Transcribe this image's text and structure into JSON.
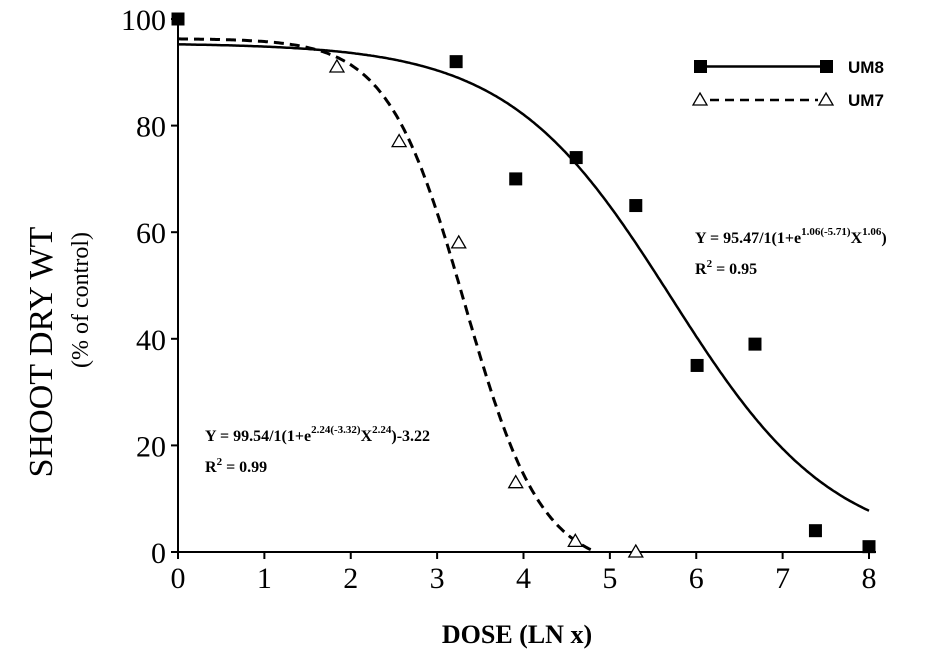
{
  "chart_data": {
    "type": "scatter",
    "xlabel": "DOSE (LN x)",
    "ylabel": "SHOOT DRY WT",
    "ylabel_sub": "(% of control)",
    "xlim": [
      0,
      8
    ],
    "ylim": [
      0,
      100
    ],
    "xticks": [
      "0",
      "1",
      "2",
      "3",
      "4",
      "5",
      "6",
      "7",
      "8"
    ],
    "yticks": [
      "0",
      "20",
      "40",
      "60",
      "80",
      "100"
    ],
    "grid": false,
    "legend_position": "top-right",
    "series": [
      {
        "name": "UM8",
        "marker": "filled-square",
        "line_style": "solid",
        "color": "#000000",
        "x": [
          0,
          3.22,
          3.91,
          4.61,
          5.3,
          6.01,
          6.68,
          7.38,
          8.0
        ],
        "y": [
          100,
          92,
          70,
          74,
          65,
          35,
          39,
          4,
          1
        ],
        "equation": {
          "prefix": "Y = 95.47/1(1+e",
          "exp1": "1.06(-5.71)",
          "middle": "X",
          "exp2": "1.06",
          "suffix": ")",
          "r2_label": "R",
          "r2_sup": "2",
          "r2_value": " = 0.95"
        },
        "fit": {
          "top": 95.47,
          "b": 1.06,
          "c": -5.71,
          "offset": 0
        }
      },
      {
        "name": "UM7",
        "marker": "open-triangle",
        "line_style": "dashed",
        "color": "#000000",
        "x": [
          1.84,
          2.56,
          3.25,
          3.91,
          4.6,
          5.3
        ],
        "y": [
          91,
          77,
          58,
          13,
          2,
          0
        ],
        "equation": {
          "prefix": "Y = 99.54/1(1+e",
          "exp1": "2.24(-3.32)",
          "middle": "X",
          "exp2": "2.24",
          "suffix": ")-3.22",
          "r2_label": "R",
          "r2_sup": "2",
          "r2_value": " = 0.99"
        },
        "fit": {
          "top": 99.54,
          "b": 2.24,
          "c": -3.32,
          "offset": -3.22
        }
      }
    ]
  }
}
